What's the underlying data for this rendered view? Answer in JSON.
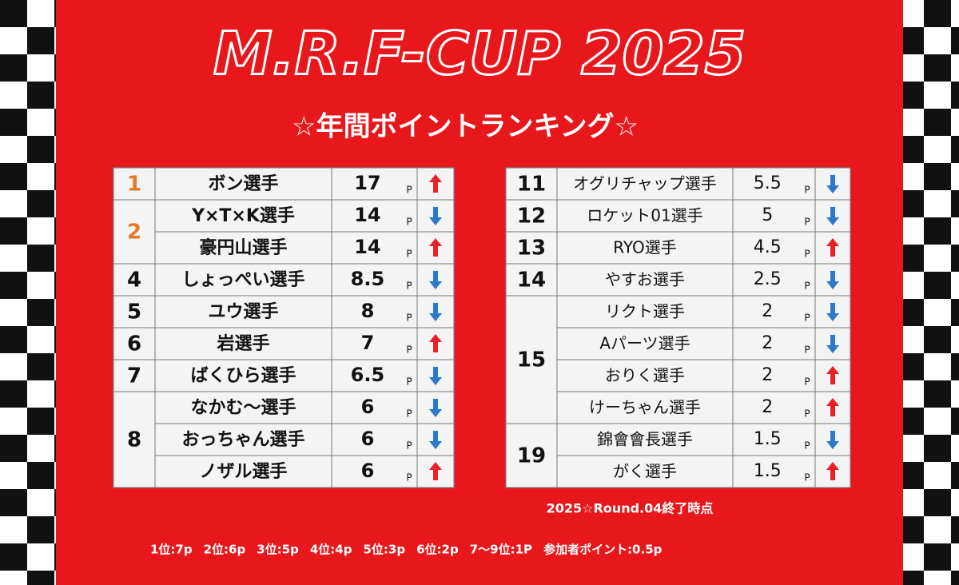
{
  "header": {
    "title": "M.R.F-CUP 2025",
    "subtitle": "☆年間ポイントランキング☆"
  },
  "point_unit": "P",
  "tables": [
    {
      "bold": true,
      "groups": [
        {
          "rank": "1",
          "color": "#e07a2a",
          "rows": [
            {
              "name": "ボン選手",
              "points": 17,
              "trend": "up"
            }
          ]
        },
        {
          "rank": "2",
          "color": "#e07a2a",
          "rows": [
            {
              "name": "Y×T×K選手",
              "points": 14,
              "trend": "down"
            },
            {
              "name": "豪円山選手",
              "points": 14,
              "trend": "up"
            }
          ]
        },
        {
          "rank": "4",
          "rows": [
            {
              "name": "しょっぺい選手",
              "points": 8.5,
              "trend": "down"
            }
          ]
        },
        {
          "rank": "5",
          "rows": [
            {
              "name": "ユウ選手",
              "points": 8,
              "trend": "down"
            }
          ]
        },
        {
          "rank": "6",
          "rows": [
            {
              "name": "岩選手",
              "points": 7,
              "trend": "up"
            }
          ]
        },
        {
          "rank": "7",
          "rows": [
            {
              "name": "ばくひら選手",
              "points": 6.5,
              "trend": "down"
            }
          ]
        },
        {
          "rank": "8",
          "rows": [
            {
              "name": "なかむ～選手",
              "points": 6,
              "trend": "down"
            },
            {
              "name": "おっちゃん選手",
              "points": 6,
              "trend": "down"
            },
            {
              "name": "ノザル選手",
              "points": 6,
              "trend": "up"
            }
          ]
        }
      ]
    },
    {
      "bold": false,
      "groups": [
        {
          "rank": "11",
          "rows": [
            {
              "name": "オグリチャップ選手",
              "points": 5.5,
              "trend": "down"
            }
          ]
        },
        {
          "rank": "12",
          "rows": [
            {
              "name": "ロケット01選手",
              "points": 5,
              "trend": "down"
            }
          ]
        },
        {
          "rank": "13",
          "rows": [
            {
              "name": "RYO選手",
              "points": 4.5,
              "trend": "up"
            }
          ]
        },
        {
          "rank": "14",
          "rows": [
            {
              "name": "やすお選手",
              "points": 2.5,
              "trend": "down"
            }
          ]
        },
        {
          "rank": "15",
          "rows": [
            {
              "name": "リクト選手",
              "points": 2,
              "trend": "down"
            },
            {
              "name": "Aパーツ選手",
              "points": 2,
              "trend": "down"
            },
            {
              "name": "おりく選手",
              "points": 2,
              "trend": "up"
            },
            {
              "name": "けーちゃん選手",
              "points": 2,
              "trend": "up"
            }
          ]
        },
        {
          "rank": "19",
          "rows": [
            {
              "name": "錦會會長選手",
              "points": 1.5,
              "trend": "down"
            },
            {
              "name": "がく選手",
              "points": 1.5,
              "trend": "up"
            }
          ]
        }
      ]
    }
  ],
  "footer": {
    "note": "2025☆Round.04終了時点",
    "scoring": [
      "1位:7p",
      "2位:6p",
      "3位:5p",
      "4位:4p",
      "5位:3p",
      "6位:2p",
      "7～9位:1P",
      "参加者ポイント:0.5p"
    ]
  }
}
